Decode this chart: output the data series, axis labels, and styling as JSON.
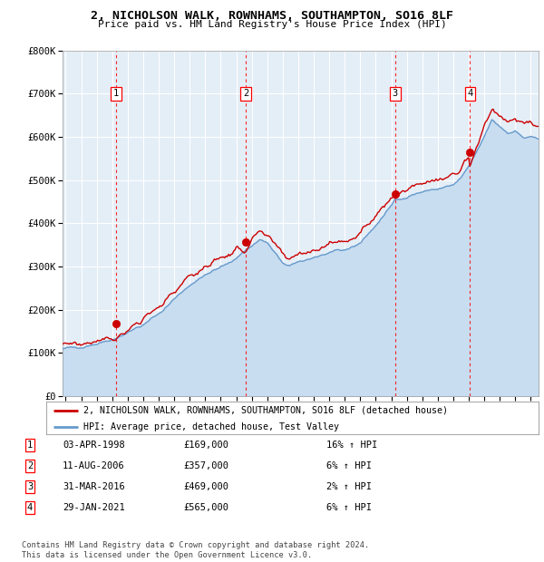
{
  "title": "2, NICHOLSON WALK, ROWNHAMS, SOUTHAMPTON, SO16 8LF",
  "subtitle": "Price paid vs. HM Land Registry's House Price Index (HPI)",
  "legend_line1": "2, NICHOLSON WALK, ROWNHAMS, SOUTHAMPTON, SO16 8LF (detached house)",
  "legend_line2": "HPI: Average price, detached house, Test Valley",
  "footnote1": "Contains HM Land Registry data © Crown copyright and database right 2024.",
  "footnote2": "This data is licensed under the Open Government Licence v3.0.",
  "sales": [
    {
      "num": 1,
      "date": "03-APR-1998",
      "price": 169000,
      "pct": "16%",
      "dir": "↑",
      "year": 1998.25
    },
    {
      "num": 2,
      "date": "11-AUG-2006",
      "price": 357000,
      "pct": "6%",
      "dir": "↑",
      "year": 2006.61
    },
    {
      "num": 3,
      "date": "31-MAR-2016",
      "price": 469000,
      "pct": "2%",
      "dir": "↑",
      "year": 2016.25
    },
    {
      "num": 4,
      "date": "29-JAN-2021",
      "price": 565000,
      "pct": "6%",
      "dir": "↑",
      "year": 2021.08
    }
  ],
  "hpi_color": "#A8C8E8",
  "hpi_fill_color": "#C8DDF0",
  "hpi_line_color": "#6699CC",
  "price_color": "#CC0000",
  "bg_color": "#E4EEF7",
  "ylim": [
    0,
    800000
  ],
  "xlim_start": 1994.8,
  "xlim_end": 2025.5,
  "yticks": [
    0,
    100000,
    200000,
    300000,
    400000,
    500000,
    600000,
    700000,
    800000
  ],
  "ytick_labels": [
    "£0",
    "£100K",
    "£200K",
    "£300K",
    "£400K",
    "£500K",
    "£600K",
    "£700K",
    "£800K"
  ],
  "xticks": [
    1995,
    1996,
    1997,
    1998,
    1999,
    2000,
    2001,
    2002,
    2003,
    2004,
    2005,
    2006,
    2007,
    2008,
    2009,
    2010,
    2011,
    2012,
    2013,
    2014,
    2015,
    2016,
    2017,
    2018,
    2019,
    2020,
    2021,
    2022,
    2023,
    2024,
    2025
  ],
  "hpi_base_years": [
    1994.8,
    1995.0,
    1996.0,
    1997.0,
    1998.0,
    1998.25,
    1999.0,
    2000.0,
    2001.0,
    2002.0,
    2003.0,
    2004.0,
    2005.0,
    2006.0,
    2006.61,
    2007.0,
    2007.5,
    2008.0,
    2008.5,
    2009.0,
    2009.5,
    2010.0,
    2011.0,
    2012.0,
    2013.0,
    2014.0,
    2015.0,
    2016.0,
    2016.25,
    2017.0,
    2018.0,
    2019.0,
    2020.0,
    2020.5,
    2021.0,
    2021.08,
    2021.5,
    2022.0,
    2022.5,
    2023.0,
    2023.5,
    2024.0,
    2024.5,
    2025.0,
    2025.5
  ],
  "hpi_base_vals": [
    108000,
    110000,
    115000,
    122000,
    132000,
    135000,
    148000,
    165000,
    190000,
    225000,
    258000,
    280000,
    298000,
    320000,
    338000,
    348000,
    362000,
    355000,
    330000,
    308000,
    300000,
    310000,
    322000,
    330000,
    338000,
    355000,
    395000,
    440000,
    455000,
    462000,
    473000,
    480000,
    488000,
    505000,
    530000,
    535000,
    565000,
    600000,
    640000,
    625000,
    610000,
    615000,
    598000,
    600000,
    595000
  ],
  "price_offset_base_years": [
    1994.8,
    1995.5,
    1996.5,
    1997.5,
    1998.25,
    1999.0,
    2000.0,
    2001.0,
    2002.0,
    2003.0,
    2004.0,
    2005.0,
    2006.0,
    2006.61,
    2007.0,
    2007.5,
    2008.0,
    2008.5,
    2009.0,
    2009.5,
    2010.0,
    2011.0,
    2012.0,
    2013.0,
    2014.0,
    2015.0,
    2016.0,
    2016.25,
    2017.0,
    2018.0,
    2019.0,
    2020.0,
    2020.5,
    2021.0,
    2021.08,
    2022.0,
    2022.5,
    2023.0,
    2023.5,
    2024.0,
    2024.5,
    2025.0,
    2025.5
  ],
  "price_offset_vals": [
    1.1,
    1.09,
    1.08,
    1.08,
    1.0,
    1.05,
    1.06,
    1.07,
    1.08,
    1.08,
    1.07,
    1.07,
    1.06,
    1.0,
    1.05,
    1.04,
    1.04,
    1.05,
    1.06,
    1.06,
    1.06,
    1.06,
    1.06,
    1.06,
    1.06,
    1.07,
    1.05,
    1.0,
    1.05,
    1.05,
    1.04,
    1.04,
    1.04,
    1.05,
    1.0,
    1.04,
    1.04,
    1.04,
    1.05,
    1.05,
    1.05,
    1.05,
    1.05
  ]
}
